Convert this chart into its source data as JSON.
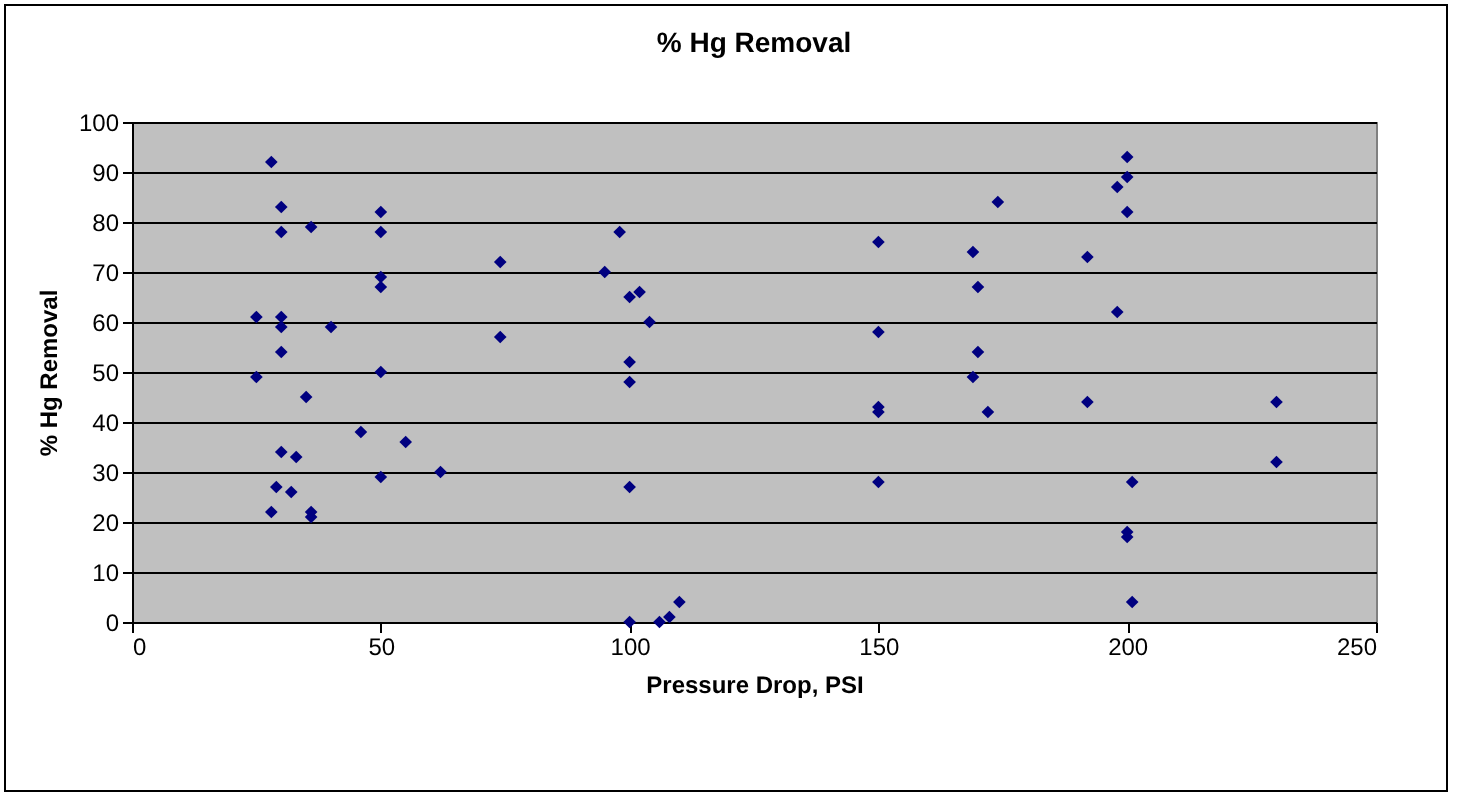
{
  "chart_data": {
    "type": "scatter",
    "title": "% Hg Removal",
    "xlabel": "Pressure Drop, PSI",
    "ylabel": "% Hg Removal",
    "marker": "diamond",
    "grid": "y",
    "xlim": [
      0,
      250
    ],
    "xticks": [
      0,
      50,
      100,
      150,
      200,
      250
    ],
    "ylim": [
      0,
      100
    ],
    "yticks": [
      0,
      10,
      20,
      30,
      40,
      50,
      60,
      70,
      80,
      90,
      100
    ],
    "x": [
      25,
      25,
      28,
      28,
      29,
      30,
      30,
      30,
      30,
      30,
      30,
      32,
      33,
      35,
      36,
      36,
      36,
      40,
      46,
      50,
      50,
      50,
      50,
      50,
      50,
      55,
      62,
      74,
      74,
      95,
      98,
      100,
      100,
      100,
      100,
      100,
      102,
      104,
      106,
      108,
      110,
      150,
      150,
      150,
      150,
      150,
      169,
      170,
      169,
      170,
      172,
      174,
      192,
      192,
      198,
      198,
      200,
      200,
      200,
      200,
      200,
      201,
      201,
      230,
      230
    ],
    "series": [
      {
        "color": "#000080",
        "values": [
          49,
          61,
          92,
          22,
          27,
          83,
          78,
          61,
          59,
          54,
          34,
          26,
          33,
          45,
          79,
          22,
          21,
          59,
          38,
          82,
          78,
          69,
          67,
          50,
          29,
          36,
          30,
          72,
          57,
          70,
          78,
          65,
          52,
          48,
          27,
          0,
          66,
          60,
          0,
          1,
          4,
          76,
          58,
          43,
          42,
          28,
          74,
          67,
          49,
          54,
          42,
          84,
          73,
          44,
          87,
          62,
          93,
          89,
          82,
          17,
          18,
          28,
          4,
          44,
          32
        ]
      }
    ]
  }
}
